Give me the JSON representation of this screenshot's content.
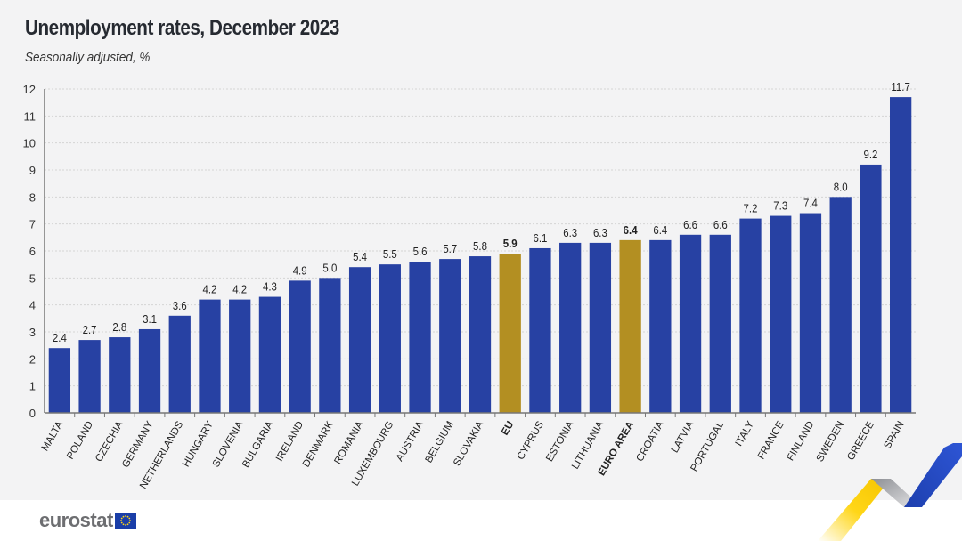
{
  "header": {
    "title": "Unemployment rates, December 2023",
    "subtitle": "Seasonally adjusted, %"
  },
  "footer": {
    "logo_text": "eurostat",
    "logo_icon": "eu-flag-icon"
  },
  "colors": {
    "country_bar": "#2741a3",
    "aggregate_bar": "#b38f22",
    "grid": "#d4d4d4",
    "axis": "#777777"
  },
  "chart_data": {
    "type": "bar",
    "title": "Unemployment rates, December 2023",
    "subtitle": "Seasonally adjusted, %",
    "xlabel": "",
    "ylabel": "",
    "ylim": [
      0,
      12
    ],
    "yticks": [
      0,
      1,
      2,
      3,
      4,
      5,
      6,
      7,
      8,
      9,
      10,
      11,
      12
    ],
    "grid": true,
    "legend": "none",
    "categories": [
      "MALTA",
      "POLAND",
      "CZECHIA",
      "GERMANY",
      "NETHERLANDS",
      "HUNGARY",
      "SLOVENIA",
      "BULGARIA",
      "IRELAND",
      "DENMARK",
      "ROMANIA",
      "LUXEMBOURG",
      "AUSTRIA",
      "BELGIUM",
      "SLOVAKIA",
      "EU",
      "CYPRUS",
      "ESTONIA",
      "LITHUANIA",
      "EURO AREA",
      "CROATIA",
      "LATVIA",
      "PORTUGAL",
      "ITALY",
      "FRANCE",
      "FINLAND",
      "SWEDEN",
      "GREECE",
      "SPAIN"
    ],
    "values": [
      2.4,
      2.7,
      2.8,
      3.1,
      3.6,
      4.2,
      4.2,
      4.3,
      4.9,
      5.0,
      5.4,
      5.5,
      5.6,
      5.7,
      5.8,
      5.9,
      6.1,
      6.3,
      6.3,
      6.4,
      6.4,
      6.6,
      6.6,
      7.2,
      7.3,
      7.4,
      8.0,
      9.2,
      11.7
    ],
    "value_labels": [
      "2.4",
      "2.7",
      "2.8",
      "3.1",
      "3.6",
      "4.2",
      "4.2",
      "4.3",
      "4.9",
      "5.0",
      "5.4",
      "5.5",
      "5.6",
      "5.7",
      "5.8",
      "5.9",
      "6.1",
      "6.3",
      "6.3",
      "6.4",
      "6.4",
      "6.6",
      "6.6",
      "7.2",
      "7.3",
      "7.4",
      "8.0",
      "9.2",
      "11.7"
    ],
    "highlighted": [
      "EU",
      "EURO AREA"
    ]
  }
}
